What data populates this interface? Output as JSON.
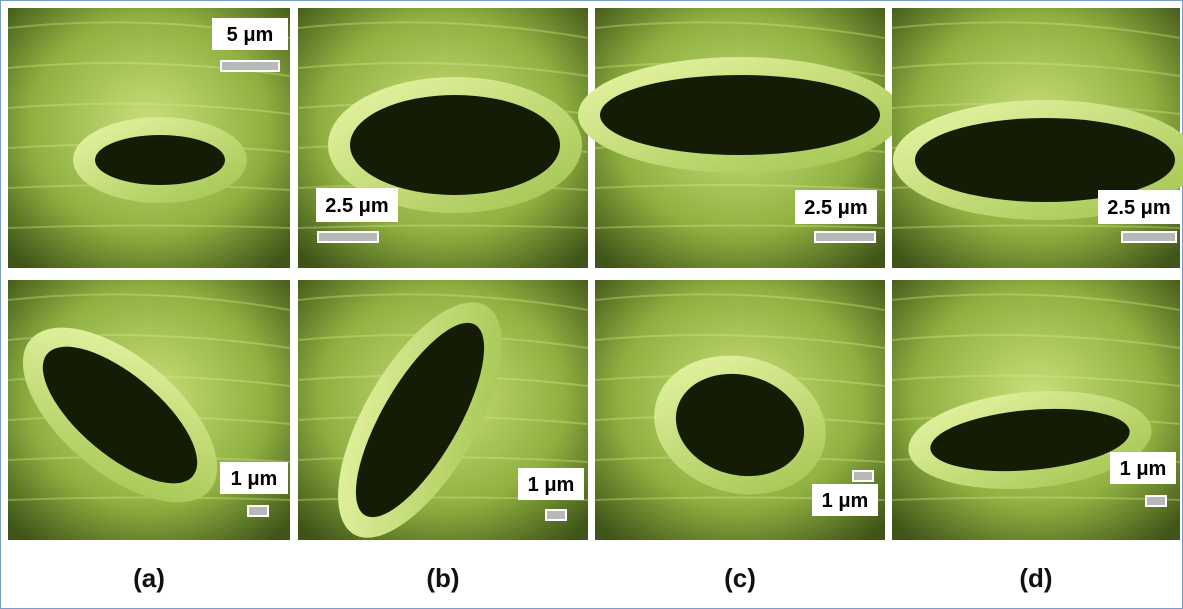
{
  "panels": [
    {
      "label": "(a)",
      "scale_labels": [
        "5 μm",
        "1 μm"
      ]
    },
    {
      "label": "(b)",
      "scale_labels": [
        "2.5 μm",
        "1 μm"
      ]
    },
    {
      "label": "(c)",
      "scale_labels": [
        "2.5 μm",
        "1 μm"
      ]
    },
    {
      "label": "(d)",
      "scale_labels": [
        "2.5 μm",
        "1 μm"
      ]
    }
  ]
}
